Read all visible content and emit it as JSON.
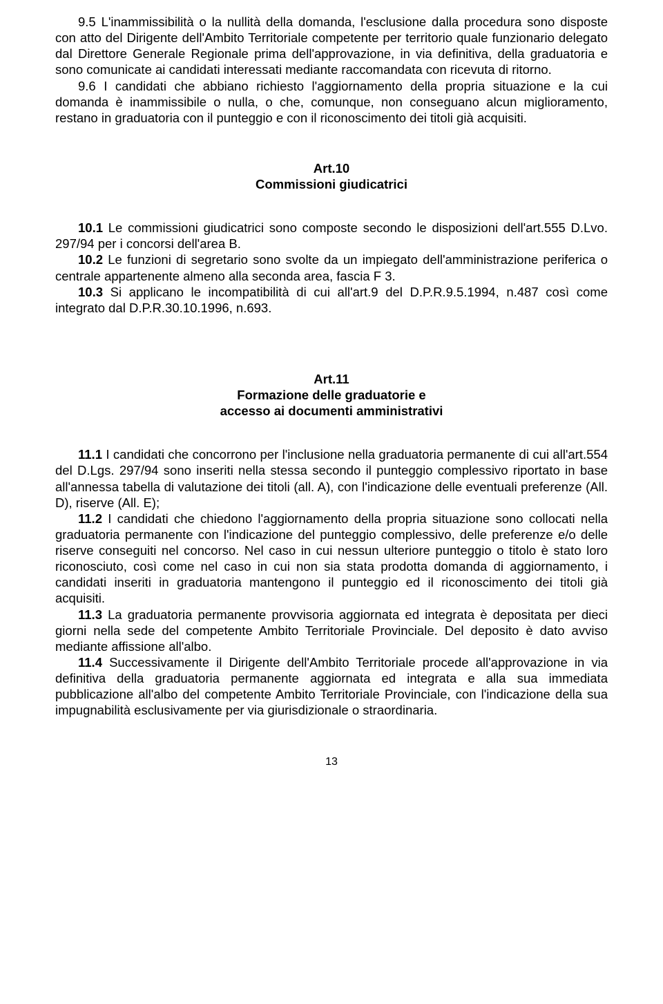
{
  "section9": {
    "p9_5": "9.5 L'inammissibilità o la nullità della domanda, l'esclusione  dalla procedura sono disposte con atto del Dirigente dell'Ambito Territoriale  competente per territorio quale funzionario delegato dal Direttore Generale Regionale  prima dell'approvazione, in via definitiva, della graduatoria e sono comunicate ai candidati interessati mediante raccomandata con ricevuta di ritorno.",
    "p9_6": "9.6  I candidati che abbiano richiesto l'aggiornamento della propria situazione e la cui domanda è inammissibile o nulla, o che, comunque, non conseguano alcun miglioramento, restano in graduatoria con il punteggio e con il riconoscimento dei titoli già acquisiti."
  },
  "art10": {
    "title1": "Art.10",
    "title2": "Commissioni giudicatrici",
    "p10_1_prefix": "10.1",
    "p10_1_body": " Le commissioni giudicatrici sono composte secondo le disposizioni dell'art.555 D.Lvo. 297/94 per i concorsi dell'area B.",
    "p10_2_prefix": "10.2",
    "p10_2_body": " Le funzioni di segretario sono svolte da un impiegato dell'amministrazione periferica o centrale appartenente almeno  alla seconda area, fascia F 3.",
    "p10_3_prefix": "10.3",
    "p10_3_body": " Si applicano le incompatibilità di cui all'art.9 del D.P.R.9.5.1994, n.487 così come integrato dal D.P.R.30.10.1996, n.693."
  },
  "art11": {
    "title1": "Art.11",
    "title2": "Formazione delle graduatorie  e",
    "title3": "accesso ai documenti amministrativi",
    "p11_1_prefix": "11.1",
    "p11_1_body": " I candidati che concorrono per l'inclusione nella graduatoria permanente di cui all'art.554 del D.Lgs. 297/94 sono inseriti nella stessa secondo il punteggio complessivo riportato in base all'annessa tabella di valutazione dei titoli (all. A), con l'indicazione delle eventuali preferenze (All. D), riserve (All. E);",
    "p11_2_prefix": "11.2",
    "p11_2_body": " I candidati che chiedono l'aggiornamento della propria situazione sono collocati nella graduatoria permanente con l'indicazione del punteggio complessivo, delle preferenze e/o delle riserve conseguiti nel concorso. Nel caso in cui nessun ulteriore punteggio o titolo è stato loro riconosciuto, così come nel caso in cui non sia stata prodotta domanda di aggiornamento, i candidati inseriti in graduatoria mantengono il punteggio ed il riconoscimento dei titoli già acquisiti.",
    "p11_3_prefix": "11.3",
    "p11_3_body": " La graduatoria permanente provvisoria aggiornata ed integrata è depositata per dieci giorni nella sede del competente Ambito Territoriale  Provinciale. Del deposito è dato avviso mediante affissione all'albo.",
    "p11_4_prefix": "11.4",
    "p11_4_body": " Successivamente il Dirigente dell'Ambito Territoriale  procede all'approvazione in via definitiva  della graduatoria permanente aggiornata ed integrata e alla sua immediata pubblicazione all'albo del competente Ambito Territoriale  Provinciale, con l'indicazione della sua impugnabilità esclusivamente per via giurisdizionale o straordinaria."
  },
  "pageNumber": "13"
}
